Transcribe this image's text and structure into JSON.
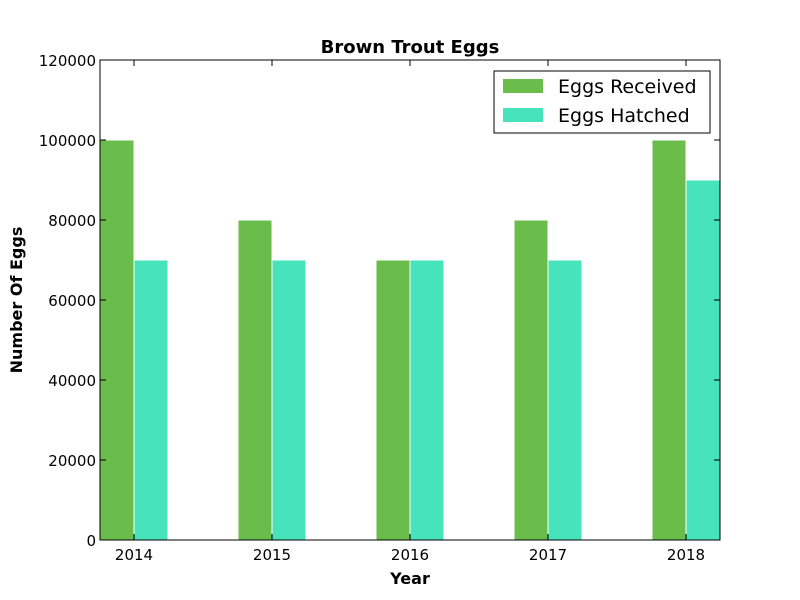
{
  "chart_data": {
    "type": "bar",
    "title": "Brown Trout Eggs",
    "xlabel": "Year",
    "ylabel": "Number Of Eggs",
    "categories": [
      "2014",
      "2015",
      "2016",
      "2017",
      "2018"
    ],
    "series": [
      {
        "name": "Eggs Received",
        "values": [
          100000,
          80000,
          70000,
          80000,
          100000
        ],
        "color": "#6abd4b"
      },
      {
        "name": "Eggs Hatched",
        "values": [
          70000,
          70000,
          70000,
          70000,
          90000
        ],
        "color": "#47e3bb"
      }
    ],
    "ylim": [
      0,
      120000
    ],
    "yticks": [
      "0",
      "20000",
      "40000",
      "60000",
      "80000",
      "100000",
      "120000"
    ],
    "grid": false,
    "legend_position": "top-right"
  }
}
